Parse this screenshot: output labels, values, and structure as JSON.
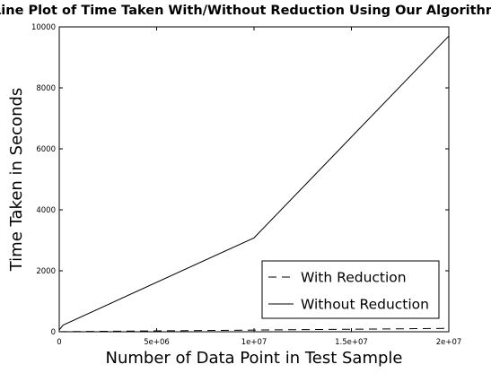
{
  "chart_data": {
    "type": "line",
    "title": "Line Plot of Time Taken With/Without Reduction Using Our Algorithm",
    "xlabel": "Number of Data Point in Test Sample",
    "ylabel": "Time Taken in Seconds",
    "xlim": [
      0,
      20000000
    ],
    "ylim": [
      0,
      10000
    ],
    "x_ticks": [
      0,
      5000000,
      10000000,
      15000000,
      20000000
    ],
    "x_tick_labels": [
      "0",
      "5e+06",
      "1e+07",
      "1.5e+07",
      "2e+07"
    ],
    "y_ticks": [
      0,
      2000,
      4000,
      6000,
      8000,
      10000
    ],
    "y_tick_labels": [
      "0",
      "2000",
      "4000",
      "6000",
      "8000",
      "10000"
    ],
    "grid": false,
    "legend_position": "bottom-right",
    "series": [
      {
        "name": "With Reduction",
        "style": "dashed",
        "color": "#000000",
        "x": [
          0,
          200000,
          10000000,
          20000000
        ],
        "y": [
          0,
          3,
          55,
          110
        ]
      },
      {
        "name": "Without Reduction",
        "style": "solid",
        "color": "#000000",
        "x": [
          0,
          200000,
          10000000,
          20000000
        ],
        "y": [
          60,
          220,
          3080,
          9700
        ]
      }
    ]
  }
}
